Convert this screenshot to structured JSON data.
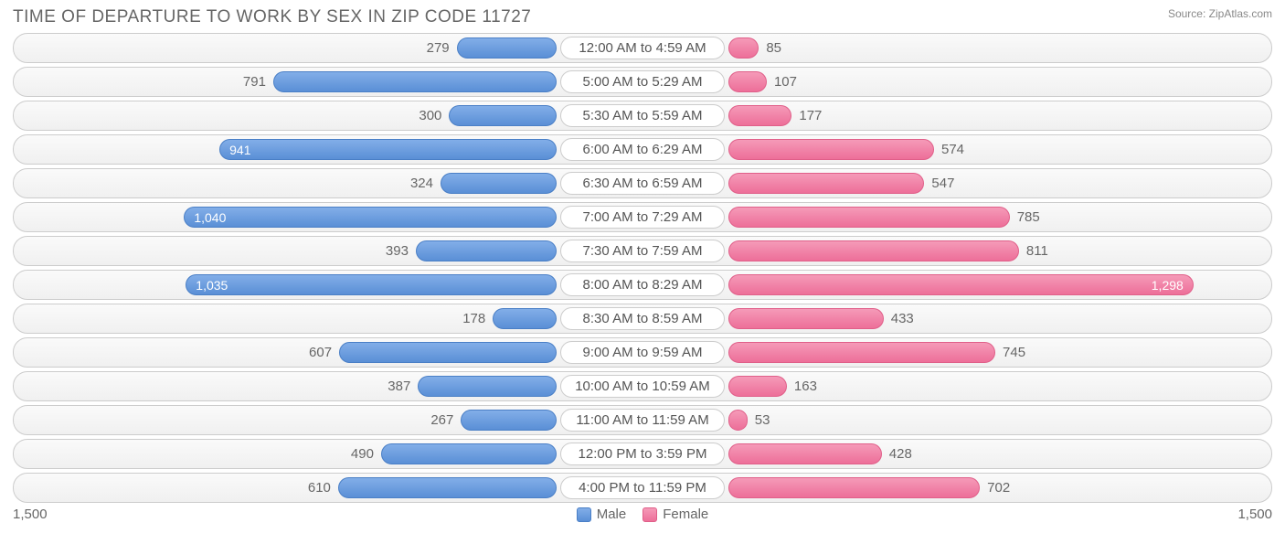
{
  "title": "TIME OF DEPARTURE TO WORK BY SEX IN ZIP CODE 11727",
  "source": "Source: ZipAtlas.com",
  "axis_max": 1500,
  "axis_label_left": "1,500",
  "axis_label_right": "1,500",
  "legend": {
    "male": "Male",
    "female": "Female"
  },
  "colors": {
    "male_bar": "#5a8fd6",
    "female_bar": "#ed6f99",
    "row_border": "#cccccc",
    "text": "#666666",
    "background": "#ffffff"
  },
  "label_inside_threshold": 900,
  "rows": [
    {
      "label": "12:00 AM to 4:59 AM",
      "male": 279,
      "male_fmt": "279",
      "female": 85,
      "female_fmt": "85"
    },
    {
      "label": "5:00 AM to 5:29 AM",
      "male": 791,
      "male_fmt": "791",
      "female": 107,
      "female_fmt": "107"
    },
    {
      "label": "5:30 AM to 5:59 AM",
      "male": 300,
      "male_fmt": "300",
      "female": 177,
      "female_fmt": "177"
    },
    {
      "label": "6:00 AM to 6:29 AM",
      "male": 941,
      "male_fmt": "941",
      "female": 574,
      "female_fmt": "574"
    },
    {
      "label": "6:30 AM to 6:59 AM",
      "male": 324,
      "male_fmt": "324",
      "female": 547,
      "female_fmt": "547"
    },
    {
      "label": "7:00 AM to 7:29 AM",
      "male": 1040,
      "male_fmt": "1,040",
      "female": 785,
      "female_fmt": "785"
    },
    {
      "label": "7:30 AM to 7:59 AM",
      "male": 393,
      "male_fmt": "393",
      "female": 811,
      "female_fmt": "811"
    },
    {
      "label": "8:00 AM to 8:29 AM",
      "male": 1035,
      "male_fmt": "1,035",
      "female": 1298,
      "female_fmt": "1,298"
    },
    {
      "label": "8:30 AM to 8:59 AM",
      "male": 178,
      "male_fmt": "178",
      "female": 433,
      "female_fmt": "433"
    },
    {
      "label": "9:00 AM to 9:59 AM",
      "male": 607,
      "male_fmt": "607",
      "female": 745,
      "female_fmt": "745"
    },
    {
      "label": "10:00 AM to 10:59 AM",
      "male": 387,
      "male_fmt": "387",
      "female": 163,
      "female_fmt": "163"
    },
    {
      "label": "11:00 AM to 11:59 AM",
      "male": 267,
      "male_fmt": "267",
      "female": 53,
      "female_fmt": "53"
    },
    {
      "label": "12:00 PM to 3:59 PM",
      "male": 490,
      "male_fmt": "490",
      "female": 428,
      "female_fmt": "428"
    },
    {
      "label": "4:00 PM to 11:59 PM",
      "male": 610,
      "male_fmt": "610",
      "female": 702,
      "female_fmt": "702"
    }
  ]
}
